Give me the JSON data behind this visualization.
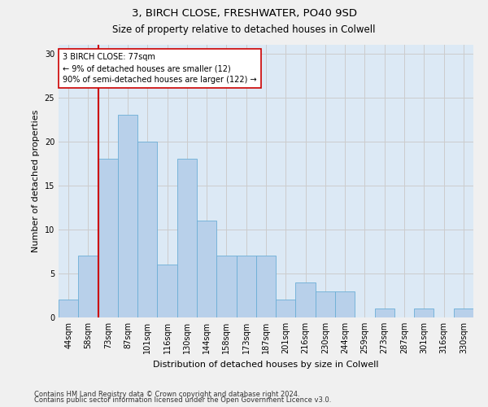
{
  "title1": "3, BIRCH CLOSE, FRESHWATER, PO40 9SD",
  "title2": "Size of property relative to detached houses in Colwell",
  "xlabel": "Distribution of detached houses by size in Colwell",
  "ylabel": "Number of detached properties",
  "categories": [
    "44sqm",
    "58sqm",
    "73sqm",
    "87sqm",
    "101sqm",
    "116sqm",
    "130sqm",
    "144sqm",
    "158sqm",
    "173sqm",
    "187sqm",
    "201sqm",
    "216sqm",
    "230sqm",
    "244sqm",
    "259sqm",
    "273sqm",
    "287sqm",
    "301sqm",
    "316sqm",
    "330sqm"
  ],
  "values": [
    2,
    7,
    18,
    23,
    20,
    6,
    18,
    11,
    7,
    7,
    7,
    2,
    4,
    3,
    3,
    0,
    1,
    0,
    1,
    0,
    1
  ],
  "bar_color": "#b8d0ea",
  "bar_edge_color": "#6baed6",
  "bar_edge_width": 0.6,
  "vline_index": 2,
  "vline_color": "#cc0000",
  "annotation_line1": "3 BIRCH CLOSE: 77sqm",
  "annotation_line2": "← 9% of detached houses are smaller (12)",
  "annotation_line3": "90% of semi-detached houses are larger (122) →",
  "annotation_box_facecolor": "#ffffff",
  "annotation_box_edgecolor": "#cc0000",
  "ylim": [
    0,
    31
  ],
  "yticks": [
    0,
    5,
    10,
    15,
    20,
    25,
    30
  ],
  "grid_color": "#cccccc",
  "bg_color": "#dce9f5",
  "fig_bg_color": "#f0f0f0",
  "title1_fontsize": 9.5,
  "title2_fontsize": 8.5,
  "xlabel_fontsize": 8,
  "ylabel_fontsize": 8,
  "tick_fontsize": 7,
  "footer1": "Contains HM Land Registry data © Crown copyright and database right 2024.",
  "footer2": "Contains public sector information licensed under the Open Government Licence v3.0.",
  "footer_fontsize": 6
}
